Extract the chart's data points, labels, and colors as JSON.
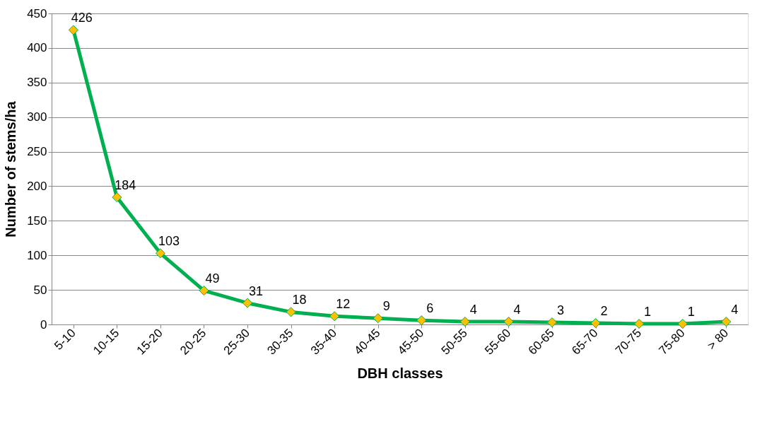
{
  "chart_data": {
    "type": "line",
    "xlabel": "DBH classes",
    "ylabel": "Number of stems/ha",
    "categories": [
      "5-10",
      "10-15",
      "15-20",
      "20-25",
      "25-30",
      "30-35",
      "35-40",
      "40-45",
      "45-50",
      "50-55",
      "55-60",
      "60-65",
      "65-70",
      "70-75",
      "75-80",
      "> 80"
    ],
    "series": [
      {
        "color": "#00b050",
        "colors": [
          "#ffc000",
          "#ffc000",
          "#ffc000",
          "#ffc000",
          "#ffc000",
          "#ffc000",
          "#ffc000",
          "#ffc000",
          "#ffc000",
          "#ffc000",
          "#ffc000",
          "#ffc000",
          "#ffc000",
          "#ffc000",
          "#ffc000",
          "#ffc000"
        ],
        "values": [
          426,
          184,
          103,
          49,
          31,
          18,
          12,
          9,
          6,
          4,
          4,
          3,
          2,
          1,
          1,
          4
        ]
      }
    ],
    "ylim": [
      0,
      450
    ],
    "yticks": [
      0,
      50,
      100,
      150,
      200,
      250,
      300,
      350,
      400,
      450
    ],
    "grid": "y",
    "marker": "diamond",
    "line_style": "solid",
    "data_labels": true
  }
}
